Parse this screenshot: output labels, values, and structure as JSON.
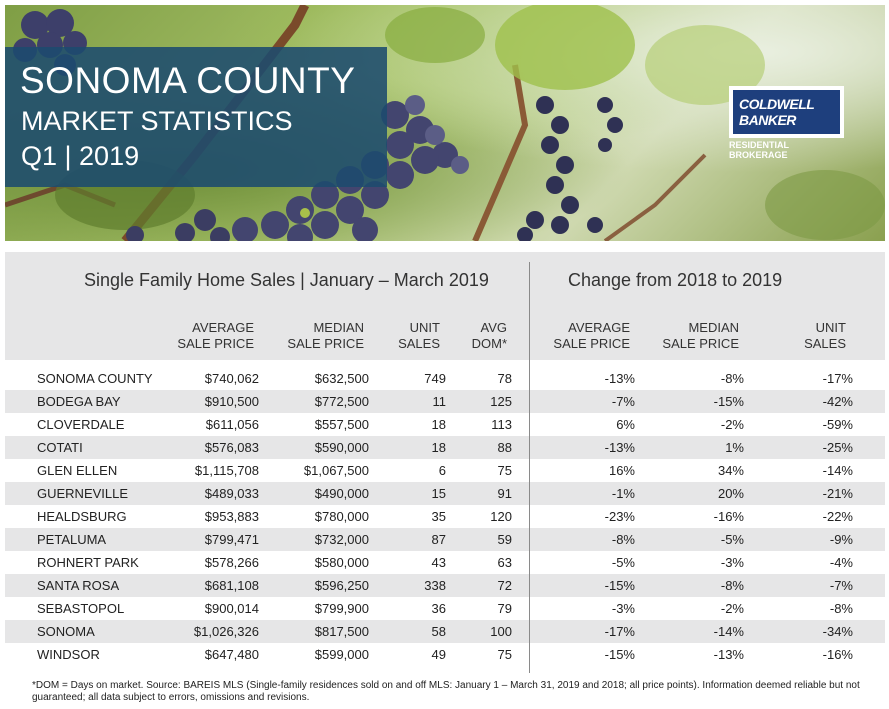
{
  "hero": {
    "title": "SONOMA COUNTY",
    "subtitle": "MARKET STATISTICS",
    "period": "Q1 | 2019"
  },
  "logo": {
    "line1": "COLDWELL",
    "line2": "BANKER",
    "tagline": "RESIDENTIAL BROKERAGE"
  },
  "table": {
    "left_heading": "Single Family Home Sales | January – March 2019",
    "right_heading": "Change from  2018 to 2019",
    "columns": [
      {
        "line1": "AVERAGE",
        "line2": "SALE PRICE"
      },
      {
        "line1": "MEDIAN",
        "line2": "SALE PRICE"
      },
      {
        "line1": "UNIT",
        "line2": "SALES"
      },
      {
        "line1": "AVG",
        "line2": "DOM*"
      },
      {
        "line1": "AVERAGE",
        "line2": "SALE PRICE"
      },
      {
        "line1": "MEDIAN",
        "line2": "SALE PRICE"
      },
      {
        "line1": "UNIT",
        "line2": "SALES"
      }
    ],
    "rows": [
      [
        "SONOMA COUNTY",
        "$740,062",
        "$632,500",
        "749",
        "78",
        "-13%",
        "-8%",
        "-17%"
      ],
      [
        "BODEGA BAY",
        "$910,500",
        "$772,500",
        "11",
        "125",
        "-7%",
        "-15%",
        "-42%"
      ],
      [
        "CLOVERDALE",
        "$611,056",
        "$557,500",
        "18",
        "113",
        "6%",
        "-2%",
        "-59%"
      ],
      [
        "COTATI",
        "$576,083",
        "$590,000",
        "18",
        "88",
        "-13%",
        "1%",
        "-25%"
      ],
      [
        "GLEN ELLEN",
        "$1,115,708",
        "$1,067,500",
        "6",
        "75",
        "16%",
        "34%",
        "-14%"
      ],
      [
        "GUERNEVILLE",
        "$489,033",
        "$490,000",
        "15",
        "91",
        "-1%",
        "20%",
        "-21%"
      ],
      [
        "HEALDSBURG",
        "$953,883",
        "$780,000",
        "35",
        "120",
        "-23%",
        "-16%",
        "-22%"
      ],
      [
        "PETALUMA",
        "$799,471",
        "$732,000",
        "87",
        "59",
        "-8%",
        "-5%",
        "-9%"
      ],
      [
        "ROHNERT PARK",
        "$578,266",
        "$580,000",
        "43",
        "63",
        "-5%",
        "-3%",
        "-4%"
      ],
      [
        "SANTA ROSA",
        "$681,108",
        "$596,250",
        "338",
        "72",
        "-15%",
        "-8%",
        "-7%"
      ],
      [
        "SEBASTOPOL",
        "$900,014",
        "$799,900",
        "36",
        "79",
        "-3%",
        "-2%",
        "-8%"
      ],
      [
        "SONOMA",
        "$1,026,326",
        "$817,500",
        "58",
        "100",
        "-17%",
        "-14%",
        "-34%"
      ],
      [
        "WINDSOR",
        "$647,480",
        "$599,000",
        "49",
        "75",
        "-15%",
        "-13%",
        "-16%"
      ]
    ]
  },
  "footnote": "*DOM = Days on market. Source: BAREIS MLS (Single-family residences sold on and off MLS: January 1 – March 31, 2019 and 2018; all price points). Information deemed reliable but not guaranteed; all data subject to errors, omissions and revisions."
}
